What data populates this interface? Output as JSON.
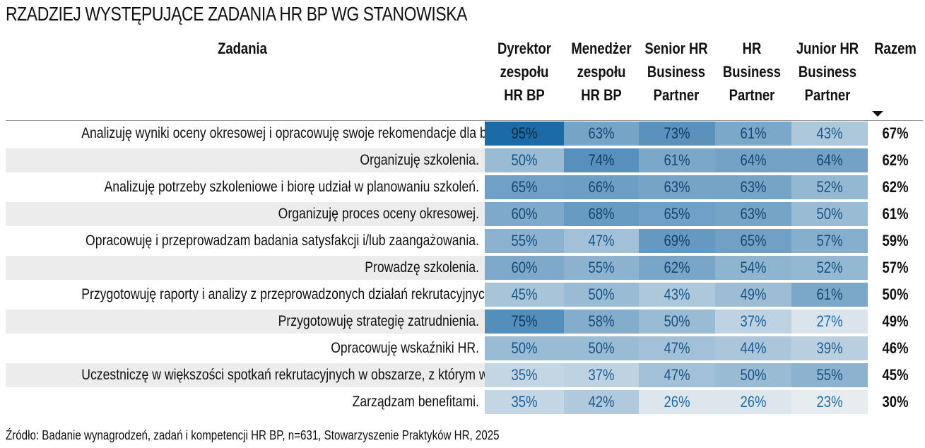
{
  "title": "RZADZIEJ WYSTĘPUJĄCE ZADANIA HR BP WG STANOWISKA",
  "source": "Źródło: Badanie wynagrodzeń, zadań i kompetencji HR BP, n=631, Stowarzyszenie Praktyków HR, 2025",
  "chart_data": {
    "type": "table",
    "title": "RZADZIEJ WYSTĘPUJĄCE ZADANIA HR BP WG STANOWISKA",
    "row_header": "Zadania",
    "columns": [
      {
        "label_lines": [
          "Dyrektor",
          "zespołu",
          "HR BP"
        ]
      },
      {
        "label_lines": [
          "Menedżer",
          "zespołu",
          "HR BP"
        ]
      },
      {
        "label_lines": [
          "Senior HR",
          "Business",
          "Partner"
        ]
      },
      {
        "label_lines": [
          "HR",
          "Business",
          "Partner"
        ]
      },
      {
        "label_lines": [
          "Junior HR",
          "Business",
          "Partner"
        ]
      }
    ],
    "total_column": "Razem",
    "sorted_by": "Razem",
    "sort_direction": "descending",
    "color_scale": {
      "low": "#eef1f3",
      "high": "#1c6aa6",
      "text_low": "#1f6fb0",
      "text_high": "#0d2a45"
    },
    "rows": [
      {
        "task": "Analizuję wyniki oceny okresowej i opracowuję swoje rekomendacje dla biznesu.",
        "values": [
          95,
          63,
          73,
          61,
          43
        ],
        "total": 67
      },
      {
        "task": "Organizuję szkolenia.",
        "values": [
          50,
          74,
          61,
          64,
          64
        ],
        "total": 62
      },
      {
        "task": "Analizuję potrzeby szkoleniowe i biorę udział w planowaniu szkoleń.",
        "values": [
          65,
          66,
          63,
          63,
          52
        ],
        "total": 62
      },
      {
        "task": "Organizuję proces oceny okresowej.",
        "values": [
          60,
          68,
          65,
          63,
          50
        ],
        "total": 61
      },
      {
        "task": "Opracowuję i przeprowadzam badania satysfakcji i/lub zaangażowania.",
        "values": [
          55,
          47,
          69,
          65,
          57
        ],
        "total": 59
      },
      {
        "task": "Prowadzę szkolenia.",
        "values": [
          60,
          55,
          62,
          54,
          52
        ],
        "total": 57
      },
      {
        "task": "Przygotowuję raporty i analizy z przeprowadzonych działań rekrutacyjnych.",
        "values": [
          45,
          50,
          43,
          49,
          61
        ],
        "total": 50
      },
      {
        "task": "Przygotowuję strategię zatrudnienia.",
        "values": [
          75,
          58,
          50,
          37,
          27
        ],
        "total": 49
      },
      {
        "task": "Opracowuję wskaźniki HR.",
        "values": [
          50,
          50,
          47,
          44,
          39
        ],
        "total": 46
      },
      {
        "task": "Uczestniczę w większości spotkań rekrutacyjnych w obszarze, z którym współpracuję.",
        "values": [
          35,
          37,
          47,
          50,
          55
        ],
        "total": 45
      },
      {
        "task": "Zarządzam benefitami.",
        "values": [
          35,
          42,
          26,
          26,
          23
        ],
        "total": 30
      }
    ]
  }
}
